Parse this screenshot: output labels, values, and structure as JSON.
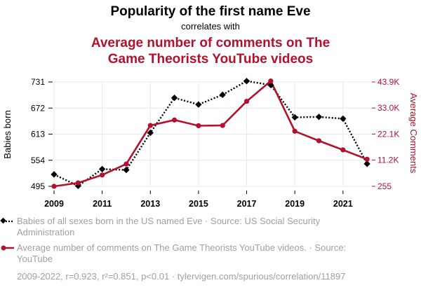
{
  "title": "Popularity of the first name Eve",
  "subtitle": "correlates with",
  "title2_line1": "Average number of comments on The",
  "title2_line2": "Game Theorists YouTube videos",
  "colors": {
    "series1": "#000000",
    "series2": "#b3112d",
    "muted": "#a0a0a0",
    "grid": "#e8e8e8"
  },
  "legend": {
    "series1_line1": "Babies of all sexes born in the US named Eve · Source: US Social Security",
    "series1_line2": "Administration",
    "series2_line1": "Average number of comments on The Game Theorists YouTube videos. · Source:",
    "series2_line2": "YouTube"
  },
  "footer": "2009-2022, r=0.923, r²=0.851, p<0.01 · tylervigen.com/spurious/correlation/11897",
  "chart_data": {
    "type": "line",
    "x": [
      2009,
      2010,
      2011,
      2012,
      2013,
      2014,
      2015,
      2016,
      2017,
      2018,
      2019,
      2020,
      2021,
      2022
    ],
    "x_ticks": [
      "2009",
      "2011",
      "2013",
      "2015",
      "2017",
      "2019",
      "2021"
    ],
    "x_tick_values": [
      2009,
      2011,
      2013,
      2015,
      2017,
      2019,
      2021
    ],
    "xlim": [
      2009,
      2022.2
    ],
    "y_left": {
      "label": "Babies born",
      "ticks": [
        "495",
        "554",
        "613",
        "672",
        "731"
      ],
      "tick_values": [
        495,
        554,
        613,
        672,
        731
      ],
      "ylim": [
        495,
        731
      ]
    },
    "y_right": {
      "label": "Average Comments",
      "ticks": [
        "255",
        "11.2K",
        "22.1K",
        "33.0K",
        "43.9K"
      ],
      "tick_values": [
        255,
        11200,
        22100,
        33000,
        43900
      ],
      "ylim": [
        255,
        43900
      ]
    },
    "series": [
      {
        "axis": "left",
        "style": "dotted",
        "marker": "diamond",
        "values": [
          522,
          496,
          534,
          532,
          616,
          695,
          680,
          702,
          733,
          724,
          651,
          652,
          648,
          546
        ]
      },
      {
        "axis": "right",
        "style": "solid",
        "marker": "circle",
        "values": [
          255,
          1700,
          5000,
          9600,
          25700,
          28000,
          25600,
          25700,
          35800,
          44300,
          23300,
          19300,
          15500,
          11600
        ]
      }
    ]
  }
}
